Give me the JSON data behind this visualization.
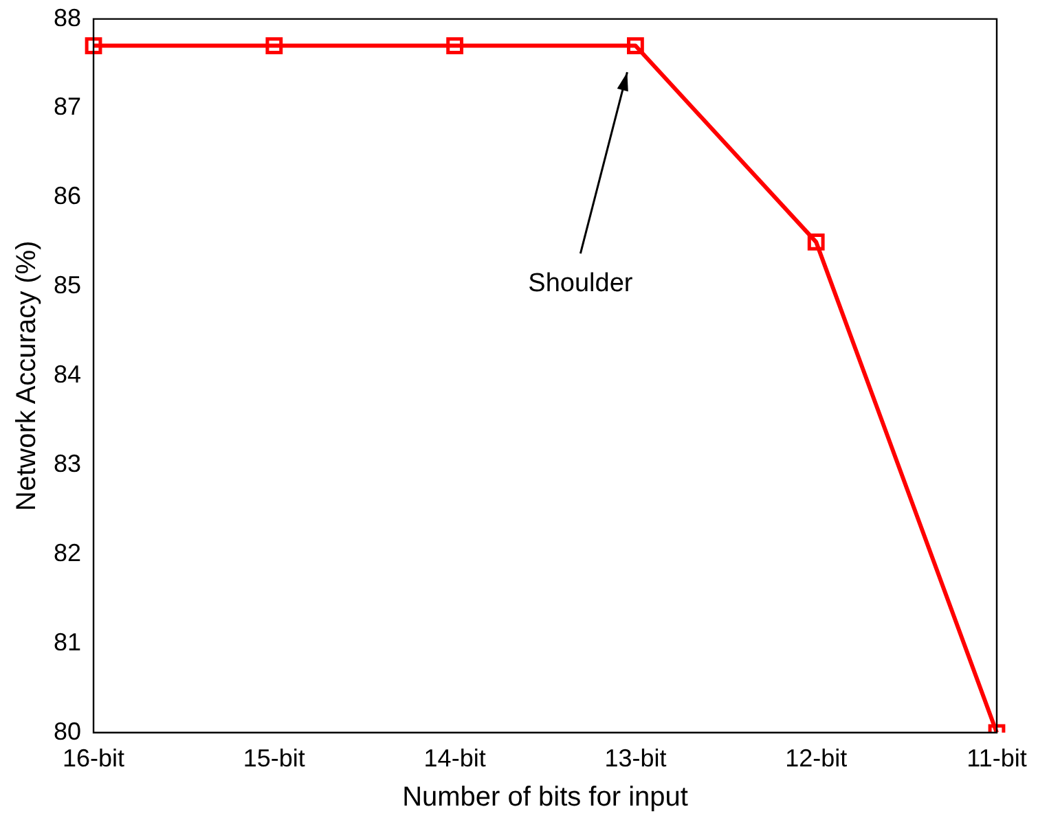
{
  "chart_data": {
    "type": "line",
    "xlabel": "Number of bits for input",
    "ylabel": "Network Accuracy (%)",
    "categories": [
      "16-bit",
      "15-bit",
      "14-bit",
      "13-bit",
      "12-bit",
      "11-bit"
    ],
    "series": [
      {
        "color": "#ff0000",
        "values": [
          87.7,
          87.7,
          87.7,
          87.7,
          85.5,
          80.0
        ]
      }
    ],
    "ylim": [
      80,
      88
    ],
    "yticks": [
      80,
      81,
      82,
      83,
      84,
      85,
      86,
      87,
      88
    ],
    "grid": false,
    "legend": false,
    "marker": "square",
    "line_style": "solid",
    "annotations": [
      "Shoulder"
    ]
  }
}
